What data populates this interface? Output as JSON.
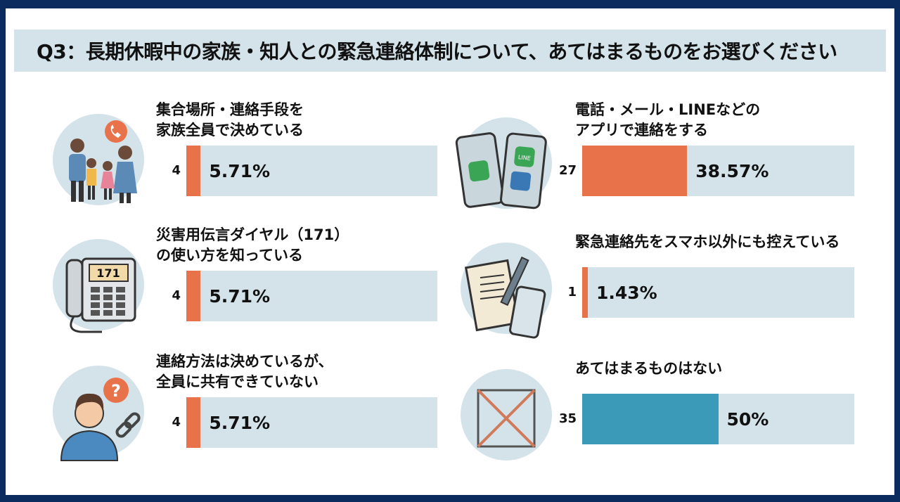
{
  "colors": {
    "accent": "#e8734a",
    "none": "#3a9ab8",
    "track": "#d4e3ea",
    "frame": "#0b2a5e"
  },
  "chart_data": {
    "type": "bar",
    "title": "Q3：長期休暇中の家族・知人との緊急連絡体制について、あてはまるものをお選びください",
    "categories": [
      "集合場所・連絡手段を家族全員で決めている",
      "災害用伝言ダイヤル（171）の使い方を知っている",
      "連絡方法は決めているが、全員に共有できていない",
      "電話・メール・LINEなどのアプリで連絡をする",
      "緊急連絡先をスマホ以外にも控えている",
      "あてはまるものはない"
    ],
    "items": [
      {
        "label_lines": [
          "集合場所・連絡手段を",
          "家族全員で決めている"
        ],
        "count": "4",
        "percent": 5.71,
        "percent_label": "5.71%",
        "icon": "family-phone-icon",
        "color": "#e8734a"
      },
      {
        "label_lines": [
          "災害用伝言ダイヤル（171）",
          "の使い方を知っている"
        ],
        "count": "4",
        "percent": 5.71,
        "percent_label": "5.71%",
        "icon": "telephone-171-icon",
        "icon_text": "171",
        "color": "#e8734a"
      },
      {
        "label_lines": [
          "連絡方法は決めているが、",
          "全員に共有できていない"
        ],
        "count": "4",
        "percent": 5.71,
        "percent_label": "5.71%",
        "icon": "person-question-link-icon",
        "color": "#e8734a"
      },
      {
        "label_lines": [
          "電話・メール・LINEなどの",
          "アプリで連絡をする"
        ],
        "count": "27",
        "percent": 38.57,
        "percent_label": "38.57%",
        "icon": "smartphones-apps-icon",
        "icon_text": "LINE",
        "color": "#e8734a"
      },
      {
        "label_lines": [
          "緊急連絡先をスマホ以外にも控えている",
          ""
        ],
        "count": "1",
        "percent": 1.43,
        "percent_label": "1.43%",
        "icon": "notebook-pen-phone-icon",
        "color": "#e8734a"
      },
      {
        "label_lines": [
          "あてはまるものはない",
          ""
        ],
        "count": "35",
        "percent": 50,
        "percent_label": "50%",
        "icon": "cross-box-icon",
        "color": "#3a9ab8"
      }
    ]
  }
}
